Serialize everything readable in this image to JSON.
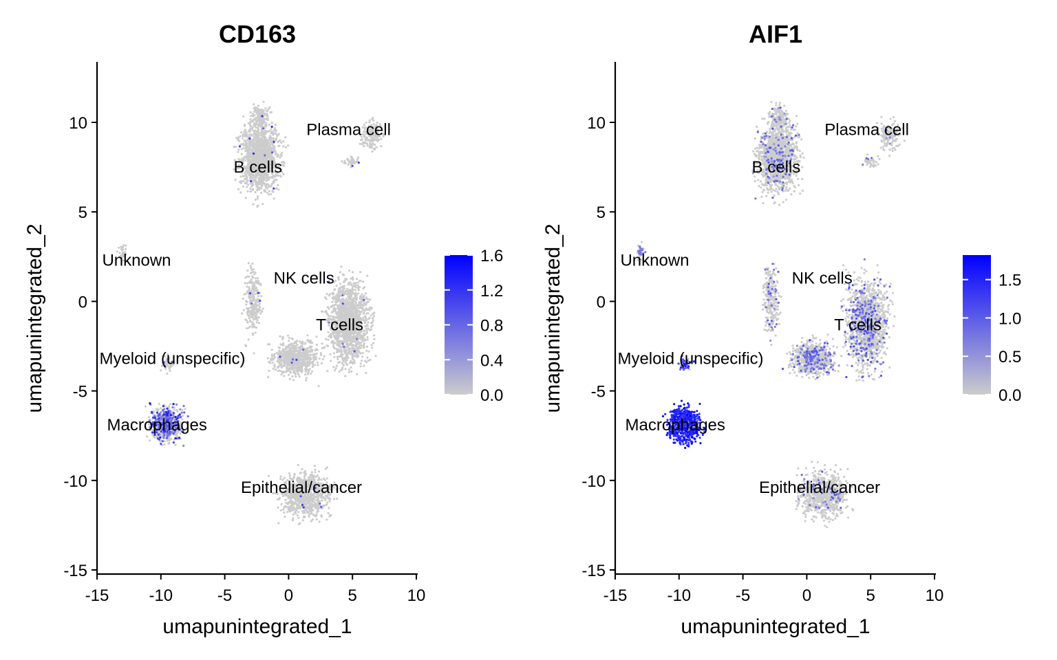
{
  "chart_data": [
    {
      "type": "scatter",
      "title": "CD163",
      "xlabel": "umapunintegrated_1",
      "ylabel": "umapunintegrated_2",
      "xlim": [
        -15.2,
        10.3
      ],
      "ylim": [
        -15.4,
        13.3
      ],
      "xticks": [
        -15,
        -10,
        -5,
        0,
        5,
        10
      ],
      "yticks": [
        -15,
        -10,
        -5,
        0,
        5,
        10
      ],
      "legend": {
        "position": "right",
        "ticks": [
          0.0,
          0.4,
          0.8,
          1.2,
          1.6
        ],
        "tick_labels": [
          "0.0",
          "0.4",
          "0.8",
          "1.2",
          "1.6"
        ],
        "max": 1.6
      },
      "cluster_labels": [
        {
          "label": "Plasma cell",
          "x": 4.7,
          "y": 9.6
        },
        {
          "label": "B cells",
          "x": -2.4,
          "y": 7.5
        },
        {
          "label": "Unknown",
          "x": -11.9,
          "y": 2.3
        },
        {
          "label": "NK cells",
          "x": 1.2,
          "y": 1.3
        },
        {
          "label": "T cells",
          "x": 4.0,
          "y": -1.3
        },
        {
          "label": "Myeloid (unspecific)",
          "x": -9.1,
          "y": -3.2
        },
        {
          "label": "Macrophages",
          "x": -10.3,
          "y": -6.9
        },
        {
          "label": "Epithelial/cancer",
          "x": 1.0,
          "y": -10.4
        }
      ]
    },
    {
      "type": "scatter",
      "title": "AIF1",
      "xlabel": "umapunintegrated_1",
      "ylabel": "umapunintegrated_2",
      "xlim": [
        -15.2,
        10.3
      ],
      "ylim": [
        -15.4,
        13.3
      ],
      "xticks": [
        -15,
        -10,
        -5,
        0,
        5,
        10
      ],
      "yticks": [
        -15,
        -10,
        -5,
        0,
        5,
        10
      ],
      "legend": {
        "position": "right",
        "ticks": [
          0.0,
          0.5,
          1.0,
          1.5
        ],
        "tick_labels": [
          "0.0",
          "0.5",
          "1.0",
          "1.5"
        ],
        "max": 1.82
      },
      "cluster_labels": [
        {
          "label": "Plasma cell",
          "x": 4.7,
          "y": 9.6
        },
        {
          "label": "B cells",
          "x": -2.4,
          "y": 7.5
        },
        {
          "label": "Unknown",
          "x": -11.9,
          "y": 2.3
        },
        {
          "label": "NK cells",
          "x": 1.2,
          "y": 1.3
        },
        {
          "label": "T cells",
          "x": 4.0,
          "y": -1.3
        },
        {
          "label": "Myeloid (unspecific)",
          "x": -9.1,
          "y": -3.2
        },
        {
          "label": "Macrophages",
          "x": -10.3,
          "y": -6.9
        },
        {
          "label": "Epithelial/cancer",
          "x": 1.0,
          "y": -10.4
        }
      ]
    }
  ],
  "colors": {
    "low": "#cccccc",
    "high": "#0000ff"
  }
}
